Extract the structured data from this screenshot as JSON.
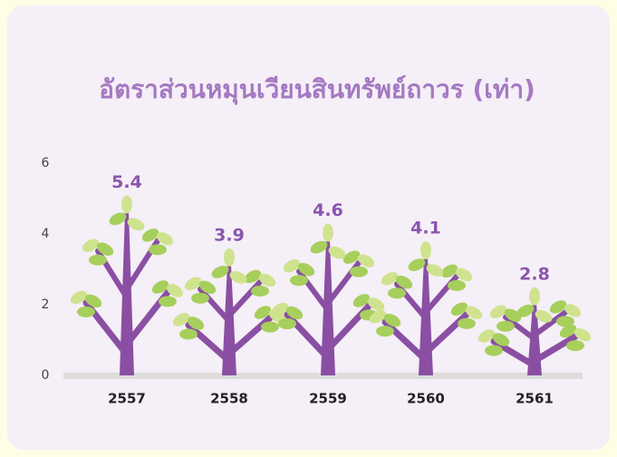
{
  "chart_data": {
    "type": "pictorial-bar",
    "title": "อัตราส่วนหมุนเวียนสินทรัพย์ถาวร (เท่า)",
    "categories": [
      "2557",
      "2558",
      "2559",
      "2560",
      "2561"
    ],
    "values": [
      5.4,
      3.9,
      4.6,
      4.1,
      2.8
    ],
    "color": "#8a4fa3",
    "ylim": [
      0,
      6
    ],
    "yticks": [
      0,
      2,
      4,
      6
    ]
  }
}
